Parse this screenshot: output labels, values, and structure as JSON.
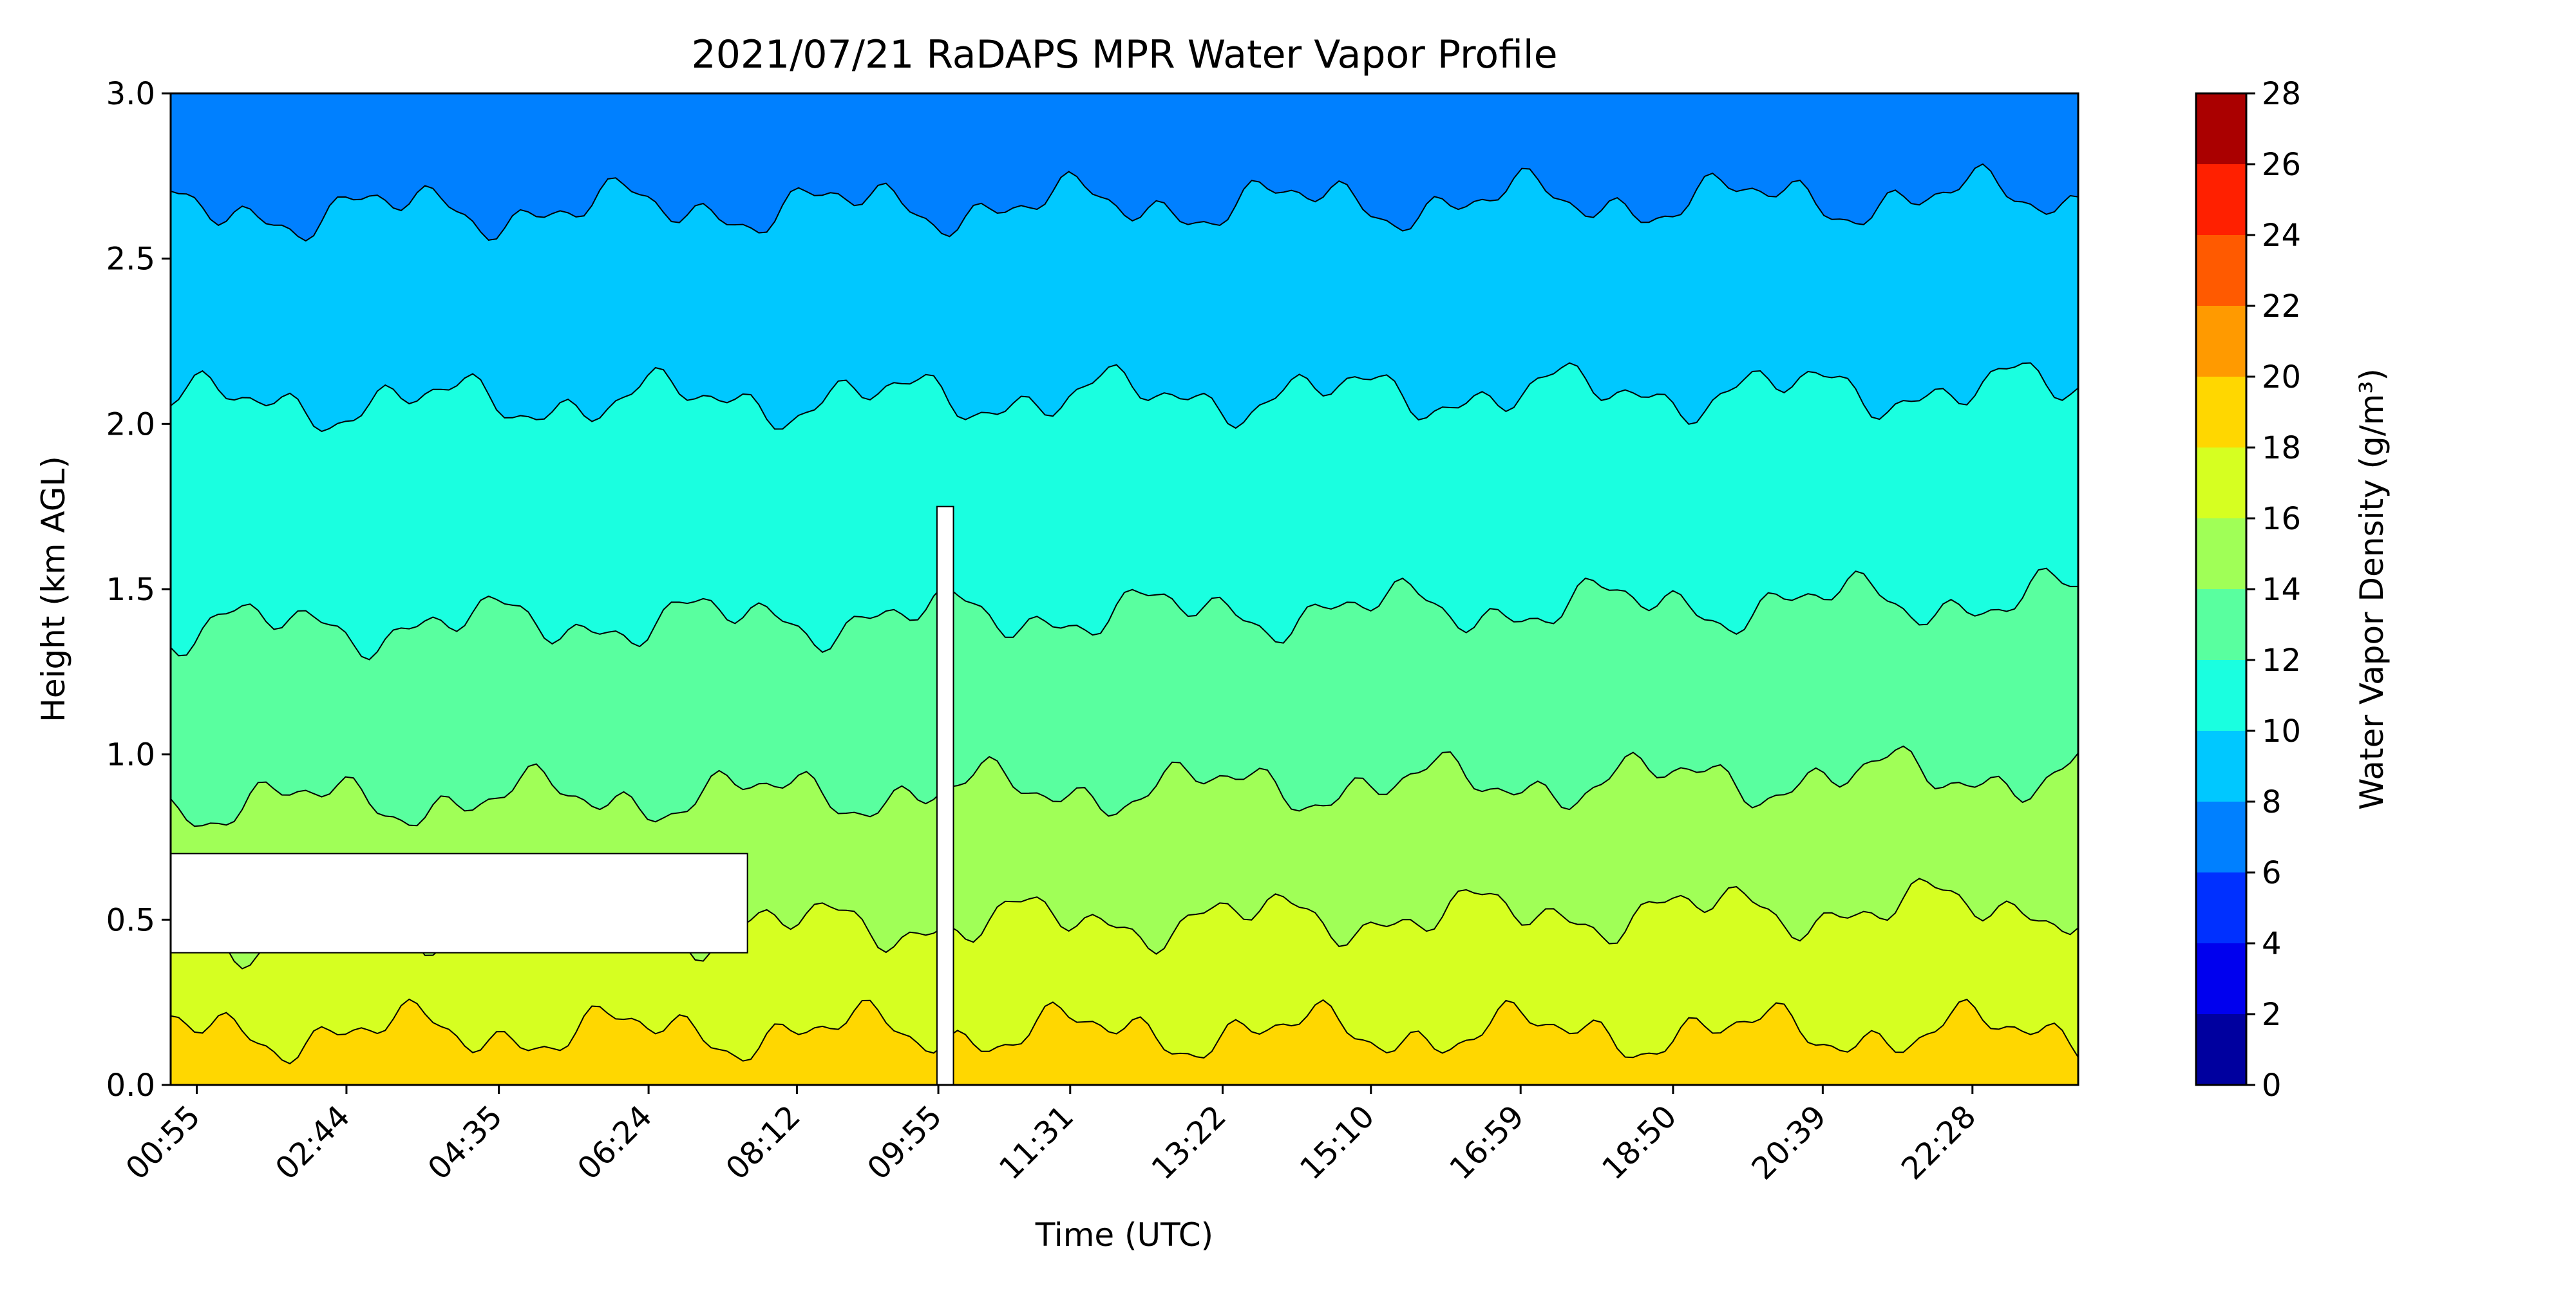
{
  "chart_data": {
    "type": "heatmap",
    "subtype": "filled-contour",
    "title": "2021/07/21 RaDAPS MPR Water Vapor Profile",
    "xlabel": "Time (UTC)",
    "ylabel": "Height (km AGL)",
    "x_tick_labels": [
      "00:55",
      "02:44",
      "04:35",
      "06:24",
      "08:12",
      "09:55",
      "11:31",
      "13:22",
      "15:10",
      "16:59",
      "18:50",
      "20:39",
      "22:28"
    ],
    "x_tick_hours": [
      0.9167,
      2.7333,
      4.5833,
      6.4,
      8.2,
      9.9167,
      11.5167,
      13.3667,
      15.1667,
      16.9833,
      18.8333,
      20.65,
      22.4667
    ],
    "x_range_hours": [
      0.6,
      23.75
    ],
    "y_ticks": [
      0.0,
      0.5,
      1.0,
      1.5,
      2.0,
      2.5,
      3.0
    ],
    "y_tick_labels": [
      "0.0",
      "0.5",
      "1.0",
      "1.5",
      "2.0",
      "2.5",
      "3.0"
    ],
    "ylim": [
      0.0,
      3.0
    ],
    "colorbar": {
      "label": "Water Vapor Density (g/m³)",
      "levels": [
        0,
        2,
        4,
        6,
        8,
        10,
        12,
        14,
        16,
        18,
        20,
        22,
        24,
        26,
        28
      ],
      "tick_labels": [
        "0",
        "2",
        "4",
        "6",
        "8",
        "10",
        "12",
        "14",
        "16",
        "18",
        "20",
        "22",
        "24",
        "26",
        "28"
      ],
      "colors": [
        "#00009f",
        "#0000ee",
        "#0030ff",
        "#0080ff",
        "#00c8ff",
        "#1affe0",
        "#59ff9f",
        "#a0ff57",
        "#d6ff21",
        "#ffd700",
        "#ff9a00",
        "#ff5a00",
        "#ff2000",
        "#aa0000"
      ]
    },
    "contour_boundaries_km": [
      {
        "level_g_m3": 18,
        "base_km": 0.16,
        "note_shape": "lowest band, moist near surface"
      },
      {
        "level_g_m3": 16,
        "base_km": 0.45
      },
      {
        "level_g_m3": 14,
        "base_km": 0.85
      },
      {
        "level_g_m3": 12,
        "base_km": 1.38
      },
      {
        "level_g_m3": 10,
        "base_km": 2.06
      },
      {
        "level_g_m3": 8,
        "base_km": 2.64
      }
    ],
    "missing_data_regions": [
      {
        "hours": [
          9.9,
          10.1
        ],
        "km": [
          0.0,
          1.75
        ]
      },
      {
        "hours": [
          0.6,
          7.6
        ],
        "km": [
          0.4,
          0.7
        ]
      }
    ],
    "grid": false,
    "legend": "colorbar-right"
  }
}
